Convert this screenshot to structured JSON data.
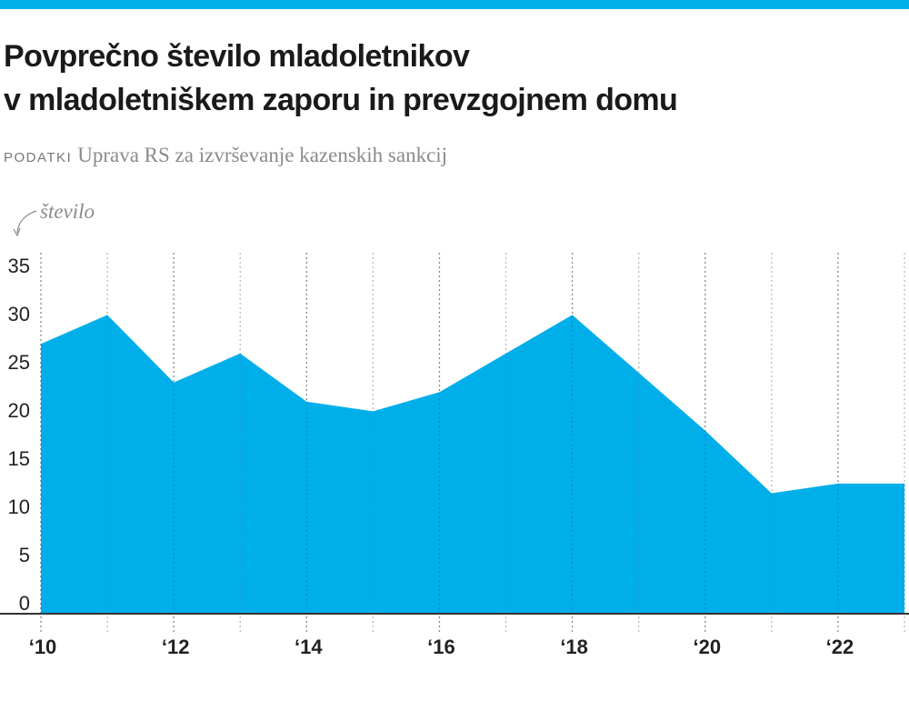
{
  "title": {
    "line1": "Povprečno število mladoletnikov",
    "line2": "v mladoletniškem zaporu in prevzgojnem domu"
  },
  "source": {
    "label": "PODATKI",
    "text": "Uprava RS za izvrševanje kazenskih sankcij"
  },
  "colors": {
    "accent": "#00aeea",
    "area": "#00aeea",
    "axis": "#333333"
  },
  "chart_data": {
    "type": "area",
    "title": "Povprečno število mladoletnikov v mladoletniškem zaporu in prevzgojnem domu",
    "ylabel": "število",
    "xlabel": "",
    "x": [
      2010,
      2011,
      2012,
      2013,
      2014,
      2015,
      2016,
      2017,
      2018,
      2019,
      2020,
      2021,
      2022,
      2023
    ],
    "values": [
      28,
      31,
      24,
      27,
      22,
      21,
      23,
      27,
      31,
      25,
      19,
      12.5,
      13.5,
      13.5
    ],
    "ylim": [
      0,
      35
    ],
    "yticks": [
      "0",
      "5",
      "10",
      "15",
      "20",
      "25",
      "30",
      "35"
    ],
    "xticks": [
      "‘10",
      "‘12",
      "‘14",
      "‘16",
      "‘18",
      "‘20",
      "‘22"
    ],
    "grid": "vertical dotted, every year",
    "legend": "none"
  }
}
